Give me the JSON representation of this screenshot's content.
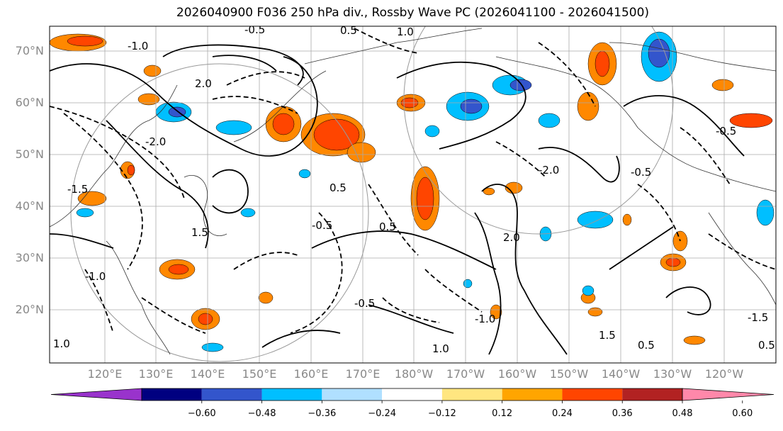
{
  "title": "2026040900 F036 250 hPa div., Rossby Wave PC (2026041100 - 2026041500)",
  "lat_labels": [
    "70°N",
    "60°N",
    "50°N",
    "40°N",
    "30°N",
    "20°N"
  ],
  "lon_labels": [
    "120°E",
    "130°E",
    "140°E",
    "150°E",
    "160°E",
    "170°E",
    "180°W",
    "170°W",
    "160°W",
    "150°W",
    "140°W",
    "130°W",
    "120°W"
  ],
  "colorbar": {
    "ticks": [
      "−0.60",
      "−0.48",
      "−0.36",
      "−0.24",
      "−0.12",
      "0.12",
      "0.24",
      "0.36",
      "0.48",
      "0.60"
    ],
    "colors": [
      "#9933cc",
      "#000080",
      "#3355cc",
      "#00bfff",
      "#b0e0ff",
      "#ffffff",
      "#ffe680",
      "#ffa500",
      "#ff4500",
      "#b22222",
      "#ff88aa"
    ]
  },
  "contour_labels": [
    "-0.5",
    "0.5",
    "1.0",
    "-1.0",
    "2.0",
    "-2.0",
    "1.5",
    "-1.5",
    "0.5",
    "-0.5"
  ],
  "divergence_patches": {
    "positive_color": "#ff8800",
    "strong_positive_color": "#ff4500",
    "negative_color": "#00bfff",
    "strong_negative_color": "#3355cc"
  }
}
